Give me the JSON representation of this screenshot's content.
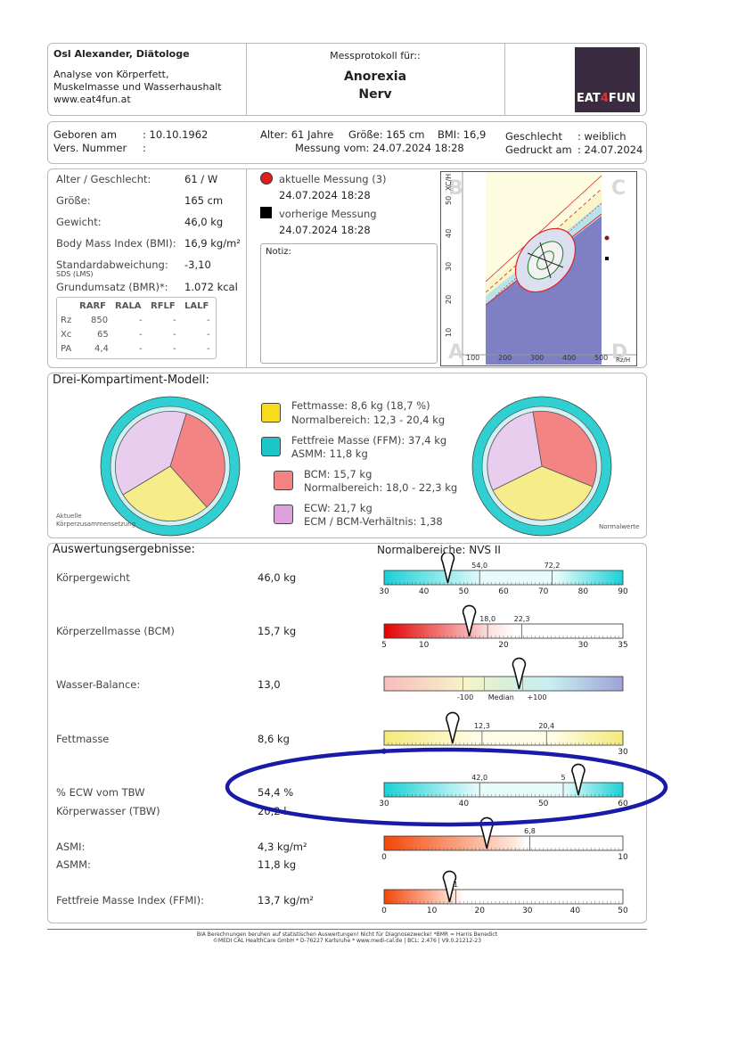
{
  "header": {
    "company": "Osl Alexander, Diätologe",
    "desc_line1": "Analyse von Körperfett,",
    "desc_line2": "Muskelmasse und Wasserhaushalt",
    "website": "www.eat4fun.at",
    "protocol_label": "Messprotokoll für::",
    "patient_line1": "Anorexia",
    "patient_line2": "Nerv",
    "logo_text_a": "EAT",
    "logo_text_b": "4",
    "logo_text_c": "FUN"
  },
  "info": {
    "born_label": "Geboren am",
    "born_value": ": 10.10.1962",
    "insurance_label": "Vers. Nummer",
    "insurance_value": ":",
    "age": "Alter: 61 Jahre",
    "height": "Größe: 165 cm",
    "bmi": "BMI: 16,9",
    "measure": "Messung vom: 24.07.2024 18:28",
    "gender_label": "Geschlecht",
    "gender_value": ": weiblich",
    "printed_label": "Gedruckt am",
    "printed_value": ": 24.07.2024"
  },
  "stats": {
    "rows": [
      {
        "label": "Alter / Geschlecht:",
        "value": "61 / W"
      },
      {
        "label": "Größe:",
        "value": "165 cm"
      },
      {
        "label": "Gewicht:",
        "value": "46,0 kg"
      },
      {
        "label": "Body Mass Index (BMI):",
        "value": "16,9 kg/m²"
      },
      {
        "label": "Standardabweichung:",
        "value": "-3,10"
      },
      {
        "label": "Grundumsatz (BMR)*:",
        "value": "1.072 kcal"
      }
    ],
    "sds_sub": "SDS (LMS)",
    "table_headers": [
      "RARF",
      "RALA",
      "RFLF",
      "LALF"
    ],
    "table_rows": [
      {
        "label": "Rz",
        "values": [
          "850",
          "-",
          "-",
          "-"
        ]
      },
      {
        "label": "Xc",
        "values": [
          "65",
          "-",
          "-",
          "-"
        ]
      },
      {
        "label": "PA",
        "values": [
          "4,4",
          "-",
          "-",
          "-"
        ]
      }
    ]
  },
  "legend_meas": {
    "current": "aktuelle Messung (3)",
    "current_date": "24.07.2024 18:28",
    "previous": "vorherige Messung",
    "previous_date": "24.07.2024 18:28",
    "notes_label": "Notiz:",
    "current_color": "#e02020",
    "previous_color": "#000000"
  },
  "rxc": {
    "corner_b": "B",
    "corner_c": "C",
    "corner_a": "A",
    "corner_d": "D",
    "y_axis": "XC/H",
    "x_axis": "Rz/H",
    "y_ticks": [
      "50",
      "40",
      "30",
      "20",
      "10"
    ],
    "x_ticks": [
      "100",
      "200",
      "300",
      "400",
      "500"
    ]
  },
  "compartment": {
    "title": "Drei-Kompartiment-Modell:",
    "left_caption_1": "Aktuelle",
    "left_caption_2": "Körperzusammensetzung",
    "right_caption": "Normalwerte",
    "legend": [
      {
        "line1": "Fettmasse: 8,6 kg (18,7 %)",
        "line2": "Normalbereich: 12,3 - 20,4 kg",
        "color": "#f5dc1f"
      },
      {
        "line1": "Fettfreie Masse (FFM): 37,4 kg",
        "line2": "ASMM: 11,8 kg",
        "color": "#1cc6c6"
      },
      {
        "line1": "BCM: 15,7 kg",
        "line2": "Normalbereich: 18,0 - 22,3 kg",
        "color": "#f48484"
      },
      {
        "line1": "ECW: 21,7 kg",
        "line2": "ECM / BCM-Verhältnis: 1,38",
        "color": "#dda0dd"
      }
    ]
  },
  "results": {
    "title": "Auswertungsergebnisse:",
    "norm_label": "Normalbereiche: NVS II",
    "rows": [
      {
        "label": "Körpergewicht",
        "value": "46,0 kg"
      },
      {
        "label": "Körperzellmasse (BCM)",
        "value": "15,7 kg"
      },
      {
        "label": "Wasser-Balance:",
        "value": "13,0"
      },
      {
        "label": "Fettmasse",
        "value": "8,6 kg"
      },
      {
        "label": "% ECW vom TBW",
        "value": "54,4 %"
      },
      {
        "label": "Körperwasser (TBW)",
        "value": "20,2 l"
      },
      {
        "label": "ASMI:",
        "value": "4,3 kg/m²"
      },
      {
        "label": "ASMM:",
        "value": "11,8 kg"
      },
      {
        "label": "Fettfreie Masse Index (FFMI):",
        "value": "13,7 kg/m²"
      }
    ],
    "scales": {
      "weight": {
        "min": 30,
        "max": 90,
        "ticks": [
          "30",
          "40",
          "50",
          "60",
          "70",
          "80",
          "90"
        ],
        "norm_low": "54,0",
        "norm_high": "72,2",
        "marker": 46.0
      },
      "bcm": {
        "min": 5,
        "max": 35,
        "ticks": [
          "5",
          "10",
          "20",
          "30",
          "35"
        ],
        "norm_low": "18,0",
        "norm_high": "22,3",
        "marker": 15.7
      },
      "water": {
        "labels": [
          "-100",
          "Median",
          "+100"
        ],
        "marker": 13.0
      },
      "fat": {
        "min": 0,
        "max": 30,
        "ticks": [
          "0",
          "30"
        ],
        "norm_low": "12,3",
        "norm_high": "20,4",
        "marker": 8.6
      },
      "ecw": {
        "min": 30,
        "max": 60,
        "ticks": [
          "30",
          "40",
          "50",
          "60"
        ],
        "norm_low": "42,0",
        "norm_high": "5",
        "marker": 54.4
      },
      "asmi": {
        "min": 0,
        "max": 10,
        "ticks": [
          "0",
          "10"
        ],
        "norm_low": "6,8",
        "marker": 4.3
      },
      "ffmi": {
        "min": 0,
        "max": 50,
        "ticks": [
          "0",
          "10",
          "20",
          "30",
          "40",
          "50"
        ],
        "norm_low": "1",
        "marker": 13.7
      }
    }
  },
  "footer": {
    "line1": "BIA Berechnungen beruhen auf statistischen Auswertungen! Nicht für Diagnosezwecke! *BMR = Harris Benedict",
    "line2": "©MEDI CAL HealthCare GmbH * D-76227 Karlsruhe * www.medi-cal.de | BCL: 2.476 | V9.0.21212-23"
  },
  "annotation": {
    "color": "#1a1aa8"
  }
}
